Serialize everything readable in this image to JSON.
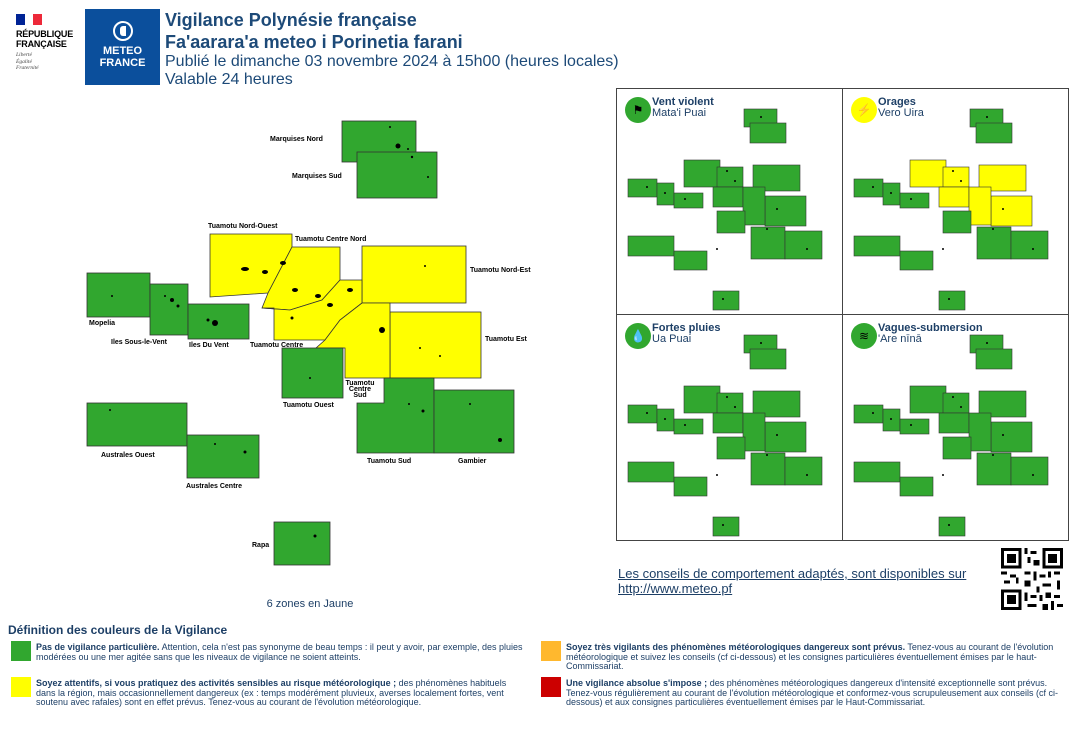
{
  "header": {
    "rf_lines": [
      "RÉPUBLIQUE",
      "FRANÇAISE"
    ],
    "rf_motto": [
      "Liberté",
      "Égalité",
      "Fraternité"
    ],
    "mf_lines": [
      "METEO",
      "FRANCE"
    ],
    "title": "Vigilance Polynésie française",
    "subtitle": "Fa'aarara'a meteo i Porinetia farani",
    "published": "Publié le dimanche 03 novembre 2024 à 15h00 (heures locales)",
    "validity": "Valable 24 heures"
  },
  "colors": {
    "green": "#31a72f",
    "yellow": "#ffff00",
    "orange": "#ffb82e",
    "red": "#cc0000"
  },
  "zones": {
    "marquises_nord": {
      "label": "Marquises Nord",
      "level": "green"
    },
    "marquises_sud": {
      "label": "Marquises Sud",
      "level": "green"
    },
    "tuamotu_nord_ouest": {
      "label": "Tuamotu Nord-Ouest",
      "level": "yellow"
    },
    "tuamotu_centre_nord": {
      "label": "Tuamotu Centre Nord",
      "level": "yellow"
    },
    "tuamotu_nord_est": {
      "label": "Tuamotu Nord-Est",
      "level": "yellow"
    },
    "mopelia": {
      "label": "Mopelia",
      "level": "green"
    },
    "iles_sous_le_vent": {
      "label": "Iles Sous-le-Vent",
      "level": "green"
    },
    "iles_du_vent": {
      "label": "Iles Du Vent",
      "level": "green"
    },
    "tuamotu_centre": {
      "label": "Tuamotu Centre",
      "level": "yellow"
    },
    "tuamotu_est": {
      "label": "Tuamotu Est",
      "level": "yellow"
    },
    "tuamotu_ouest": {
      "label": "Tuamotu Ouest",
      "level": "green"
    },
    "tuamotu_centre_sud": {
      "label_lines": [
        "Tuamotu",
        "Centre",
        "Sud"
      ],
      "level": "yellow"
    },
    "australes_ouest": {
      "label": "Australes Ouest",
      "level": "green"
    },
    "australes_centre": {
      "label": "Australes Centre",
      "level": "green"
    },
    "tuamotu_sud": {
      "label": "Tuamotu Sud",
      "level": "green"
    },
    "gambier": {
      "label": "Gambier",
      "level": "green"
    },
    "rapa": {
      "label": "Rapa",
      "level": "green"
    }
  },
  "zone_count": "6 zones en Jaune",
  "panels": [
    {
      "title": "Vent violent",
      "subtitle": "Mata'i Puai",
      "icon": "wind-flag-icon",
      "glyph": "⚑",
      "level": "green",
      "yellow_zones": []
    },
    {
      "title": "Orages",
      "subtitle": "Vero Uira",
      "icon": "lightning-icon",
      "glyph": "⚡",
      "level": "yellow",
      "yellow_zones": [
        "tuamotu_nord_ouest",
        "tuamotu_centre_nord",
        "tuamotu_nord_est",
        "tuamotu_centre",
        "tuamotu_est",
        "tuamotu_centre_sud"
      ]
    },
    {
      "title": "Fortes pluies",
      "subtitle": "Ua Puai",
      "icon": "rain-drops-icon",
      "glyph": "💧",
      "level": "green",
      "yellow_zones": []
    },
    {
      "title": "Vagues-submersion",
      "subtitle": "'Are nīnā",
      "icon": "wave-icon",
      "glyph": "≋",
      "level": "green",
      "yellow_zones": []
    }
  ],
  "advice": {
    "line1": "Les conseils de comportement adaptés, sont disponibles sur",
    "line2": "http://www.meteo.pf"
  },
  "legend": {
    "title": "Définition des couleurs de la Vigilance",
    "green_bold": "Pas de vigilance particulière.",
    "green_text": " Attention, cela n'est pas synonyme de beau temps : il peut y avoir, par exemple, des pluies modérées ou une mer agitée sans que les niveaux de vigilance ne soient atteints.",
    "yellow_bold": "Soyez attentifs, si vous pratiquez des activités sensibles au risque météorologique ;",
    "yellow_text": " des phénomènes habituels dans la région, mais occasionnellement dangereux (ex : temps modérément pluvieux, averses localement fortes, vent soutenu avec rafales) sont en effet prévus. Tenez-vous au courant de l'évolution météorologique.",
    "orange_bold": "Soyez très vigilants des phénomènes météorologiques dangereux sont prévus.",
    "orange_text": " Tenez-vous au courant de l'évolution météorologique et suivez les conseils (cf ci-dessous) et les consignes particulières éventuellement émises par le haut-Commissariat.",
    "red_bold": "Une vigilance absolue s'impose ;",
    "red_text": " des phénomènes météorologiques dangereux d'intensité exceptionnelle sont prévus. Tenez-vous régulièrement au courant de l'évolution météorologique et conformez-vous scrupuleusement aux conseils (cf ci-dessous) et aux consignes particulières éventuellement émises par le Haut-Commissariat."
  }
}
